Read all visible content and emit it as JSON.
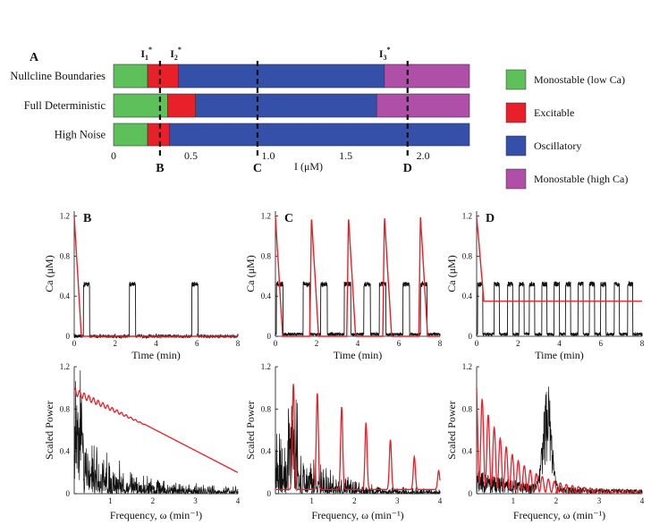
{
  "chart_data": [
    {
      "type": "bar",
      "panel_label": "A",
      "orientation": "horizontal-stacked",
      "rows": [
        "Nullcline Boundaries",
        "Full Deterministic",
        "High Noise"
      ],
      "regions": [
        {
          "name": "Monostable (low Ca)",
          "color": "#5ec05a"
        },
        {
          "name": "Excitable",
          "color": "#e8202a"
        },
        {
          "name": "Oscillatory",
          "color": "#3550a8"
        },
        {
          "name": "Monostable (high Ca)",
          "color": "#b04fa8"
        }
      ],
      "segments": [
        [
          [
            0,
            0.22,
            "Monostable (low Ca)"
          ],
          [
            0.22,
            0.42,
            "Excitable"
          ],
          [
            0.42,
            1.75,
            "Oscillatory"
          ],
          [
            1.75,
            2.3,
            "Monostable (high Ca)"
          ]
        ],
        [
          [
            0,
            0.35,
            "Monostable (low Ca)"
          ],
          [
            0.35,
            0.53,
            "Excitable"
          ],
          [
            0.53,
            1.7,
            "Oscillatory"
          ],
          [
            1.7,
            2.3,
            "Monostable (high Ca)"
          ]
        ],
        [
          [
            0,
            0.22,
            "Monostable (low Ca)"
          ],
          [
            0.22,
            0.36,
            "Excitable"
          ],
          [
            0.36,
            2.3,
            "Oscillatory"
          ]
        ]
      ],
      "xlabel": "I (μM)",
      "xlim": [
        0,
        2.3
      ],
      "xticks": [
        "0",
        "0.5",
        "1.0",
        "1.5",
        "2.0"
      ],
      "thresholds": [
        {
          "label": "I",
          "sub": "1",
          "sup": "*",
          "x": 0.21
        },
        {
          "label": "I",
          "sub": "2",
          "sup": "*",
          "x": 0.4
        },
        {
          "label": "I",
          "sub": "3",
          "sup": "*",
          "x": 1.75
        }
      ],
      "markers": [
        {
          "label": "B",
          "x": 0.3
        },
        {
          "label": "C",
          "x": 0.93
        },
        {
          "label": "D",
          "x": 1.9
        }
      ]
    },
    {
      "type": "line",
      "panel_label": "B",
      "xlabel": "Time (min)",
      "ylabel": "Ca (μM)",
      "xlim": [
        0,
        8
      ],
      "ylim": [
        0,
        1.25
      ],
      "xticks": [
        "0",
        "2",
        "4",
        "6",
        "8"
      ],
      "yticks": [
        "0",
        "0.4",
        "0.8",
        "1.2"
      ],
      "series": [
        {
          "color": "#111111",
          "kind": "stochastic",
          "baseline": 0.0,
          "plateau": 0.52,
          "spike_starts": [
            0.45,
            2.7,
            5.75
          ],
          "spike_width": 0.3
        },
        {
          "color": "#e8202a",
          "kind": "deterministic",
          "peak": 1.2,
          "peak_times": [
            0.0
          ],
          "decay_to": 0.0
        }
      ]
    },
    {
      "type": "line",
      "panel_label": "C",
      "xlabel": "Time (min)",
      "ylabel": "Ca (μM)",
      "xlim": [
        0,
        8
      ],
      "ylim": [
        0,
        1.25
      ],
      "xticks": [
        "0",
        "2",
        "4",
        "6",
        "8"
      ],
      "yticks": [
        "0",
        "0.4",
        "0.8",
        "1.2"
      ],
      "series": [
        {
          "color": "#111111",
          "kind": "stochastic",
          "baseline": 0.02,
          "plateau": 0.52,
          "spike_starts": [
            0.05,
            1.35,
            2.2,
            3.35,
            4.3,
            5.05,
            6.2,
            7.05
          ],
          "spike_width": 0.32
        },
        {
          "color": "#e8202a",
          "kind": "deterministic",
          "peak": 1.2,
          "peak_times": [
            0.0,
            1.75,
            3.55,
            5.3,
            7.05
          ],
          "decay_to": 0.0
        }
      ]
    },
    {
      "type": "line",
      "panel_label": "D",
      "xlabel": "Time (min)",
      "ylabel": "Ca (μM)",
      "xlim": [
        0,
        8
      ],
      "ylim": [
        0,
        1.25
      ],
      "xticks": [
        "0",
        "2",
        "4",
        "6",
        "8"
      ],
      "yticks": [
        "0",
        "0.4",
        "0.8",
        "1.2"
      ],
      "series": [
        {
          "color": "#111111",
          "kind": "stochastic",
          "baseline": 0.02,
          "plateau": 0.52,
          "spike_starts": [
            0.05,
            0.85,
            1.5,
            2.05,
            2.55,
            3.15,
            3.75,
            4.3,
            4.9,
            5.45,
            6.0,
            6.65,
            7.3
          ],
          "spike_width": 0.25
        },
        {
          "color": "#e8202a",
          "kind": "steady",
          "peak": 1.2,
          "peak_times": [
            0.0
          ],
          "decay_to": 0.35
        }
      ]
    },
    {
      "type": "line",
      "panel_label": "B",
      "xlabel": "Frequency, ω (min⁻¹)",
      "ylabel": "Scaled Power",
      "xlim": [
        0.15,
        4
      ],
      "ylim": [
        0,
        1.2
      ],
      "xticks": [
        "1",
        "2",
        "3",
        "4"
      ],
      "yticks": [
        "0",
        "0.4",
        "0.8",
        "1.2"
      ],
      "series": [
        {
          "color": "#111111",
          "kind": "noise",
          "level_start": 0.45,
          "level_end": 0.03,
          "peak_freq": 0.25
        },
        {
          "color": "#e8202a",
          "kind": "ripple",
          "start": 1.0,
          "end": 0.2,
          "ripple_until": 1.8,
          "ripple_amp": 0.07
        }
      ]
    },
    {
      "type": "line",
      "panel_label": "C",
      "xlabel": "Frequency, ω (min⁻¹)",
      "ylabel": "Scaled Power",
      "xlim": [
        0.15,
        4
      ],
      "ylim": [
        0,
        1.2
      ],
      "xticks": [
        "1",
        "2",
        "3",
        "4"
      ],
      "yticks": [
        "0",
        "0.4",
        "0.8",
        "1.2"
      ],
      "series": [
        {
          "color": "#111111",
          "kind": "noise",
          "level_start": 0.4,
          "level_end": 0.02,
          "peak_freq": 0.55
        },
        {
          "color": "#e8202a",
          "kind": "harmonics",
          "peaks": [
            [
              0.57,
              1.0
            ],
            [
              1.13,
              0.91
            ],
            [
              1.7,
              0.78
            ],
            [
              2.27,
              0.63
            ],
            [
              2.84,
              0.47
            ],
            [
              3.4,
              0.31
            ],
            [
              3.97,
              0.18
            ]
          ],
          "baseline": 0.04
        }
      ]
    },
    {
      "type": "line",
      "panel_label": "D",
      "xlabel": "Frequency, ω (min⁻¹)",
      "ylabel": "Scaled Power",
      "xlim": [
        0.15,
        4
      ],
      "ylim": [
        0,
        1.2
      ],
      "xticks": [
        "1",
        "2",
        "3",
        "4"
      ],
      "yticks": [
        "0",
        "0.4",
        "0.8",
        "1.2"
      ],
      "series": [
        {
          "color": "#111111",
          "kind": "noise_peak",
          "level_start": 0.15,
          "level_end": 0.02,
          "peak_freq": 1.8,
          "peak_height": 1.0
        },
        {
          "color": "#e8202a",
          "kind": "decaying_ripple",
          "start": 1.05,
          "end": 0.02,
          "spacing": 0.14
        }
      ]
    }
  ]
}
